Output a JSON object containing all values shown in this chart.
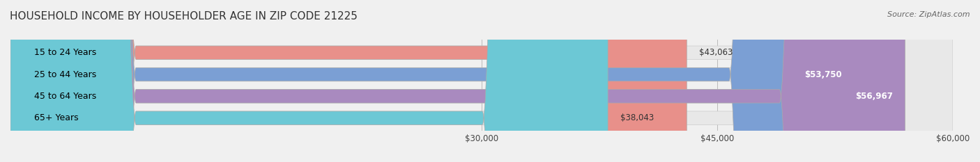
{
  "title": "HOUSEHOLD INCOME BY HOUSEHOLDER AGE IN ZIP CODE 21225",
  "source": "Source: ZipAtlas.com",
  "categories": [
    "15 to 24 Years",
    "25 to 44 Years",
    "45 to 64 Years",
    "65+ Years"
  ],
  "values": [
    43063,
    53750,
    56967,
    38043
  ],
  "bar_colors": [
    "#e8908a",
    "#7b9fd4",
    "#a98abf",
    "#6cc8d5"
  ],
  "bar_edge_colors": [
    "#c07070",
    "#5a82b8",
    "#8a6aab",
    "#4aaccb"
  ],
  "value_labels": [
    "$43,063",
    "$53,750",
    "$56,967",
    "$38,043"
  ],
  "xmin": 0,
  "xmax": 60000,
  "xticks": [
    30000,
    45000,
    60000
  ],
  "xtick_labels": [
    "$30,000",
    "$45,000",
    "$60,000"
  ],
  "background_color": "#f0f0f0",
  "bar_background_color": "#e8e8e8",
  "title_fontsize": 11,
  "source_fontsize": 8,
  "label_fontsize": 9,
  "value_fontsize": 8.5,
  "tick_fontsize": 8.5,
  "bar_height": 0.62
}
